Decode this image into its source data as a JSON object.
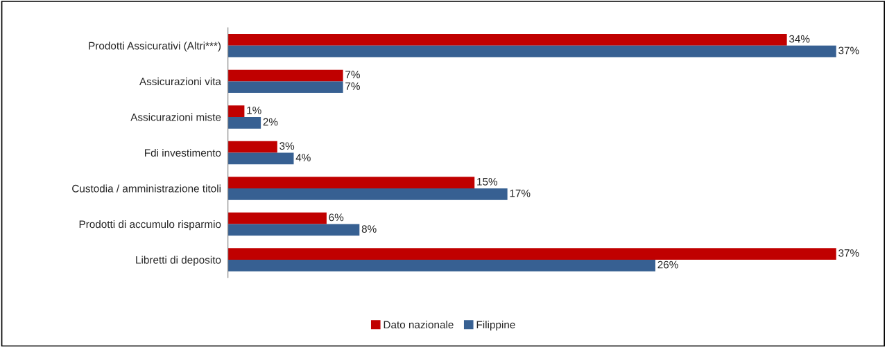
{
  "chart_data": {
    "type": "bar",
    "orientation": "horizontal",
    "categories": [
      "Prodotti Assicurativi (Altri***)",
      "Assicurazioni vita",
      "Assicurazioni miste",
      "Fdi investimento",
      "Custodia / amministrazione titoli",
      "Prodotti di accumulo risparmio",
      "Libretti di deposito"
    ],
    "series": [
      {
        "name": "Dato nazionale",
        "color": "#c00000",
        "values": [
          34,
          7,
          1,
          3,
          15,
          6,
          37
        ],
        "value_labels": [
          "34%",
          "7%",
          "1%",
          "3%",
          "15%",
          "6%",
          "37%"
        ]
      },
      {
        "name": "Filippine",
        "color": "#376092",
        "values": [
          37,
          7,
          2,
          4,
          17,
          8,
          26
        ],
        "value_labels": [
          "37%",
          "7%",
          "2%",
          "4%",
          "17%",
          "8%",
          "26%"
        ]
      }
    ],
    "legend": "bottom",
    "grid": false,
    "tick_labels": "y"
  }
}
